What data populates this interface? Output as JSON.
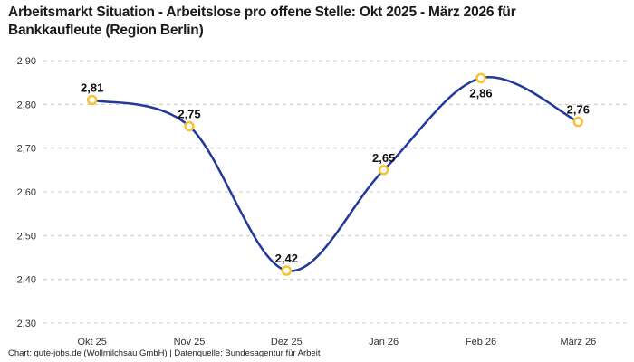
{
  "header": {
    "title_lines": [
      "Arbeitsmarkt Situation - Arbeitslose pro offene Stelle: Okt 2025 - März 2026 für",
      "Bankkaufleute (Region Berlin)"
    ]
  },
  "footer": {
    "credit": "Chart: gute-jobs.de (Wollmilchsau GmbH) | Datenquelle: Bundesagentur für Arbeit"
  },
  "chart_data": {
    "type": "line",
    "title": "Arbeitsmarkt Situation - Arbeitslose pro offene Stelle: Okt 2025 - März 2026 für Bankkaufleute (Region Berlin)",
    "categories": [
      "Okt 25",
      "Nov 25",
      "Dez 25",
      "Jan 26",
      "Feb 26",
      "März 26"
    ],
    "values": [
      2.81,
      2.75,
      2.42,
      2.65,
      2.86,
      2.76
    ],
    "value_labels": [
      "2,81",
      "2,75",
      "2,42",
      "2,65",
      "2,86",
      "2,76"
    ],
    "label_placement": [
      "above",
      "above",
      "above",
      "above",
      "below",
      "above"
    ],
    "xlabel": "",
    "ylabel": "",
    "ylim": [
      2.3,
      2.9
    ],
    "y_tick_values": [
      2.9,
      2.8,
      2.7,
      2.6,
      2.5,
      2.4,
      2.3
    ],
    "y_tick_labels": [
      "2,90",
      "2,80",
      "2,70",
      "2,60",
      "2,50",
      "2,40",
      "2,30"
    ],
    "grid": "horizontal-dashed",
    "legend": "none",
    "line_style": "smooth-spline",
    "colors": {
      "line": "#21399b",
      "marker_stroke": "#f9c234",
      "marker_fill": "#ffffff",
      "grid": "#cccccc",
      "tick_text": "#333333",
      "point_label": "#111111",
      "title_text": "#1a1a1a"
    }
  }
}
